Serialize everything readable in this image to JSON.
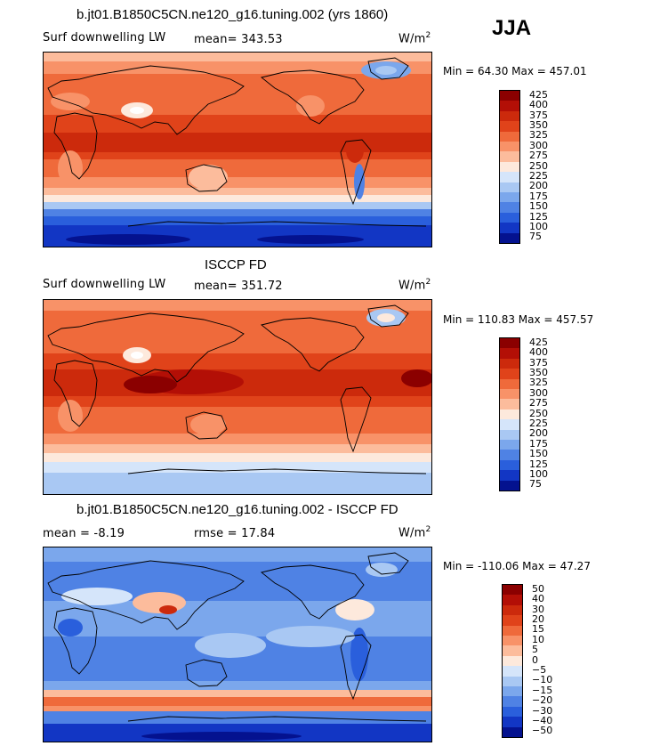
{
  "season": "JJA",
  "panels": [
    {
      "title": "b.jt01.B1850C5CN.ne120_g16.tuning.002 (yrs 1860)",
      "variable": "Surf downwelling LW",
      "stat1": "mean= 343.53",
      "stat2": "",
      "units": "W/m",
      "units_exp": "2",
      "minmax": "Min =  64.30 Max = 457.01"
    },
    {
      "title": "ISCCP FD",
      "variable": "Surf downwelling LW",
      "stat1": "mean= 351.72",
      "stat2": "",
      "units": "W/m",
      "units_exp": "2",
      "minmax": "Min = 110.83 Max = 457.57"
    },
    {
      "title": "b.jt01.B1850C5CN.ne120_g16.tuning.002 - ISCCP FD",
      "variable": "",
      "stat1": "mean =   -8.19",
      "stat2": "rmse =   17.84",
      "units": "W/m",
      "units_exp": "2",
      "minmax": "Min = -110.06 Max =  47.27"
    }
  ],
  "chart_data": [
    {
      "type": "heatmap",
      "title": "b.jt01.B1850C5CN.ne120_g16.tuning.002 (yrs 1860)",
      "variable": "Surf downwelling LW",
      "units": "W/m2",
      "mean": 343.53,
      "min": 64.3,
      "max": 457.01,
      "levels": [
        425,
        400,
        375,
        350,
        325,
        300,
        275,
        250,
        225,
        200,
        175,
        150,
        125,
        100,
        75
      ],
      "colors": [
        "#8b0000",
        "#b30f06",
        "#cc2a0c",
        "#e0431a",
        "#ef6a3b",
        "#f89268",
        "#fcbc9c",
        "#fde9dc",
        "#d5e5fa",
        "#a9c8f3",
        "#7ba7ec",
        "#4f82e4",
        "#2a5fdc",
        "#1236c4",
        "#04128f"
      ]
    },
    {
      "type": "heatmap",
      "title": "ISCCP FD",
      "variable": "Surf downwelling LW",
      "units": "W/m2",
      "mean": 351.72,
      "min": 110.83,
      "max": 457.57,
      "levels": [
        425,
        400,
        375,
        350,
        325,
        300,
        275,
        250,
        225,
        200,
        175,
        150,
        125,
        100,
        75
      ],
      "colors": [
        "#8b0000",
        "#b30f06",
        "#cc2a0c",
        "#e0431a",
        "#ef6a3b",
        "#f89268",
        "#fcbc9c",
        "#fde9dc",
        "#d5e5fa",
        "#a9c8f3",
        "#7ba7ec",
        "#4f82e4",
        "#2a5fdc",
        "#1236c4",
        "#04128f"
      ]
    },
    {
      "type": "heatmap",
      "title": "b.jt01.B1850C5CN.ne120_g16.tuning.002 - ISCCP FD",
      "units": "W/m2",
      "mean": -8.19,
      "rmse": 17.84,
      "min": -110.06,
      "max": 47.27,
      "levels": [
        50,
        40,
        30,
        20,
        15,
        10,
        5,
        0,
        -5,
        -10,
        -15,
        -20,
        -30,
        -40,
        -50
      ],
      "colors": [
        "#8b0000",
        "#b30f06",
        "#cc2a0c",
        "#e0431a",
        "#ef6a3b",
        "#f89268",
        "#fcbc9c",
        "#fde9dc",
        "#d5e5fa",
        "#a9c8f3",
        "#7ba7ec",
        "#4f82e4",
        "#2a5fdc",
        "#1236c4",
        "#04128f"
      ]
    }
  ]
}
